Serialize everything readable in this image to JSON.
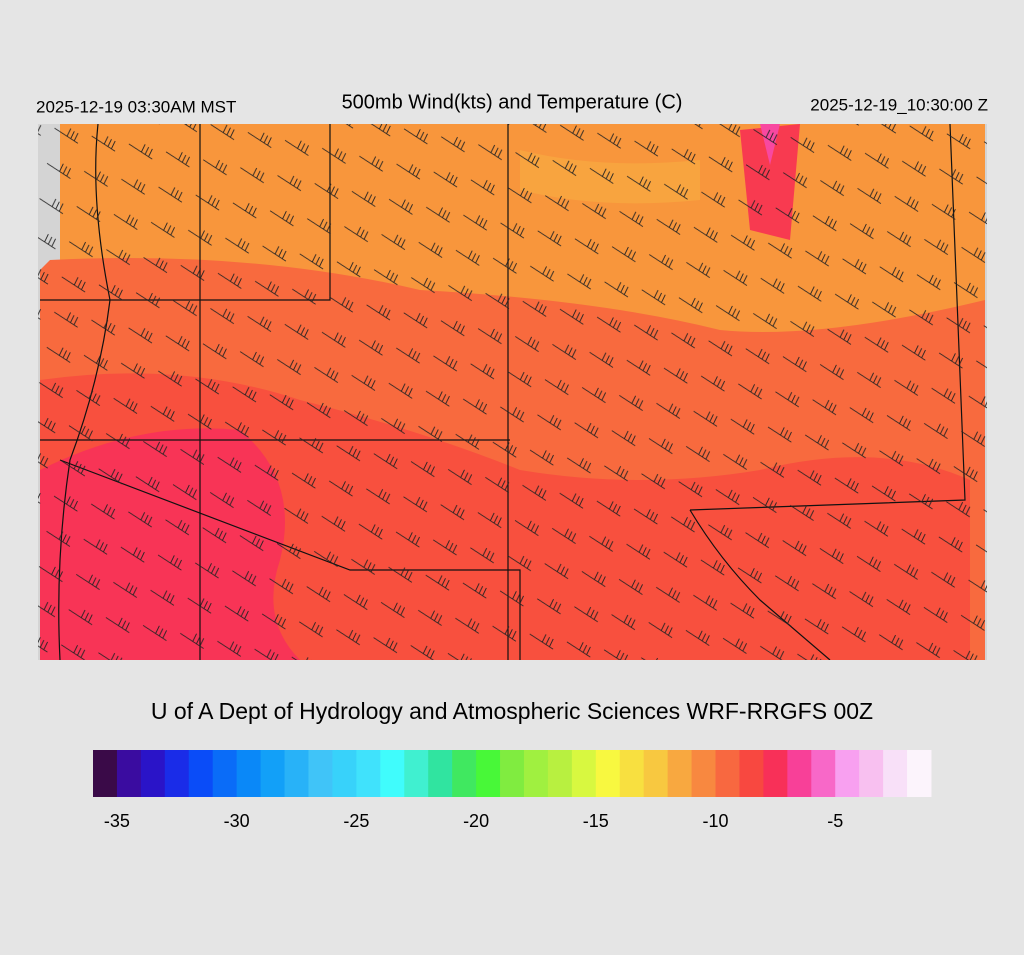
{
  "header": {
    "left": "2025-12-19 03:30AM MST",
    "title": "500mb Wind(kts) and Temperature (C)",
    "right": "2025-12-19_10:30:00 Z"
  },
  "credit": "U of A Dept of Hydrology and Atmospheric Sciences WRF-RRGFS 00Z",
  "colorbar": {
    "bins": [
      -36,
      -35,
      -34,
      -33,
      -32,
      -31,
      -30,
      -29,
      -28,
      -27,
      -26,
      -25,
      -24,
      -23,
      -22,
      -21,
      -20,
      -19,
      -18,
      -17,
      -16,
      -15,
      -14,
      -13,
      -12,
      -11,
      -10,
      -9,
      -8,
      -7,
      -6,
      -5,
      -4,
      -3,
      -2,
      -1
    ],
    "colors": [
      "#3a0a48",
      "#3a0ca0",
      "#2a14c8",
      "#1a2ce8",
      "#0a4cf8",
      "#0a6cf8",
      "#0a88f8",
      "#12a0f8",
      "#28b2f8",
      "#40c4f8",
      "#38d2fa",
      "#40e2fc",
      "#40fcfc",
      "#40f0d0",
      "#30e4a0",
      "#40e860",
      "#48f838",
      "#80ec40",
      "#a0f040",
      "#b8f040",
      "#d8f840",
      "#f8f840",
      "#f8e040",
      "#f8c840",
      "#f8a840",
      "#f88840",
      "#f86840",
      "#f84840",
      "#f83058",
      "#f84098",
      "#f868c8",
      "#f8a0f0",
      "#f8c0f0",
      "#f8e0f8",
      "#fcf4fc"
    ],
    "xticks": [
      -35,
      -30,
      -25,
      -20,
      -15,
      -10,
      -5
    ]
  }
}
